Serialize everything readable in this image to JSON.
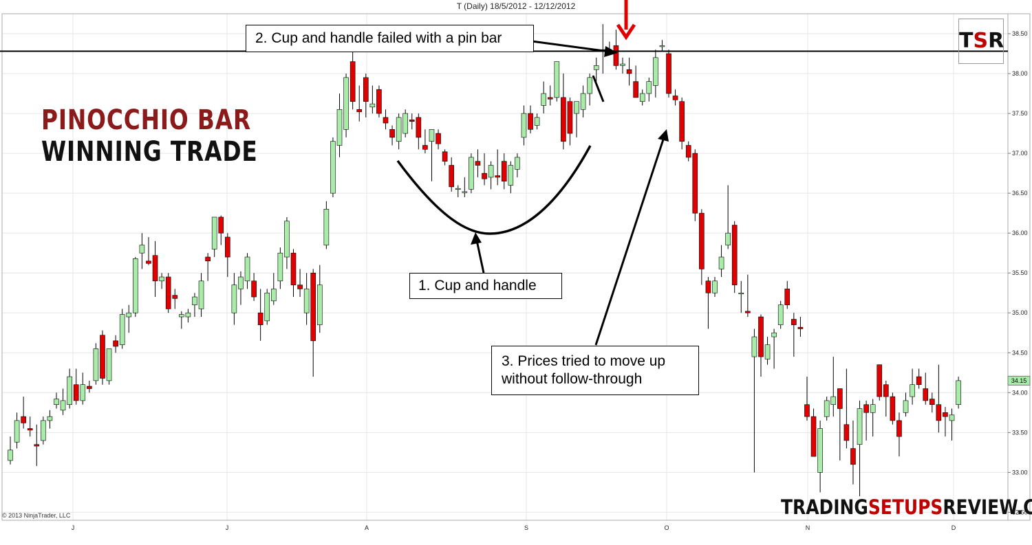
{
  "chart_data": {
    "type": "candlestick",
    "title": "T (Daily)  18/5/2012 - 12/12/2012",
    "ylim": [
      32.4,
      38.75
    ],
    "y_ticks": [
      "32.50",
      "33.00",
      "33.50",
      "34.00",
      "34.50",
      "35.00",
      "35.50",
      "36.00",
      "36.50",
      "37.00",
      "37.50",
      "38.00",
      "38.50"
    ],
    "x_ticks": [
      "J",
      "J",
      "A",
      "S",
      "O",
      "N",
      "D"
    ],
    "last_price": "34.15",
    "resistance_level": 38.28,
    "grid": true,
    "candles": [
      {
        "o": 33.15,
        "h": 33.45,
        "l": 33.1,
        "c": 33.28
      },
      {
        "o": 33.38,
        "h": 33.75,
        "l": 33.3,
        "c": 33.65
      },
      {
        "o": 33.7,
        "h": 33.95,
        "l": 33.55,
        "c": 33.62
      },
      {
        "o": 33.55,
        "h": 33.7,
        "l": 33.45,
        "c": 33.53
      },
      {
        "o": 33.35,
        "h": 33.6,
        "l": 33.08,
        "c": 33.33
      },
      {
        "o": 33.4,
        "h": 33.7,
        "l": 33.35,
        "c": 33.65
      },
      {
        "o": 33.65,
        "h": 33.78,
        "l": 33.55,
        "c": 33.7
      },
      {
        "o": 33.85,
        "h": 34.0,
        "l": 33.8,
        "c": 33.92
      },
      {
        "o": 33.78,
        "h": 34.05,
        "l": 33.72,
        "c": 33.9
      },
      {
        "o": 33.85,
        "h": 34.3,
        "l": 33.8,
        "c": 34.2
      },
      {
        "o": 34.1,
        "h": 34.3,
        "l": 33.85,
        "c": 33.9
      },
      {
        "o": 33.9,
        "h": 34.25,
        "l": 33.85,
        "c": 34.1
      },
      {
        "o": 34.08,
        "h": 34.15,
        "l": 34.0,
        "c": 34.05
      },
      {
        "o": 34.15,
        "h": 34.62,
        "l": 34.1,
        "c": 34.55
      },
      {
        "o": 34.72,
        "h": 34.78,
        "l": 34.1,
        "c": 34.18
      },
      {
        "o": 34.15,
        "h": 34.55,
        "l": 34.1,
        "c": 34.55
      },
      {
        "o": 34.65,
        "h": 34.72,
        "l": 34.5,
        "c": 34.58
      },
      {
        "o": 34.6,
        "h": 35.05,
        "l": 34.55,
        "c": 34.98
      },
      {
        "o": 34.95,
        "h": 35.1,
        "l": 34.75,
        "c": 35.0
      },
      {
        "o": 35.0,
        "h": 35.7,
        "l": 34.95,
        "c": 35.68
      },
      {
        "o": 35.75,
        "h": 36.0,
        "l": 35.55,
        "c": 35.85
      },
      {
        "o": 35.65,
        "h": 35.95,
        "l": 35.6,
        "c": 35.62
      },
      {
        "o": 35.72,
        "h": 35.9,
        "l": 35.2,
        "c": 35.4
      },
      {
        "o": 35.4,
        "h": 35.5,
        "l": 35.3,
        "c": 35.45
      },
      {
        "o": 35.45,
        "h": 35.5,
        "l": 35.0,
        "c": 35.05
      },
      {
        "o": 35.22,
        "h": 35.3,
        "l": 35.05,
        "c": 35.18
      },
      {
        "o": 34.95,
        "h": 35.02,
        "l": 34.8,
        "c": 34.98
      },
      {
        "o": 34.95,
        "h": 35.05,
        "l": 34.88,
        "c": 35.0
      },
      {
        "o": 35.1,
        "h": 35.25,
        "l": 34.95,
        "c": 35.2
      },
      {
        "o": 35.05,
        "h": 35.5,
        "l": 34.95,
        "c": 35.4
      },
      {
        "o": 35.7,
        "h": 35.75,
        "l": 35.4,
        "c": 35.65
      },
      {
        "o": 35.8,
        "h": 36.2,
        "l": 35.7,
        "c": 36.2
      },
      {
        "o": 36.2,
        "h": 36.22,
        "l": 35.85,
        "c": 36.0
      },
      {
        "o": 35.95,
        "h": 36.0,
        "l": 35.45,
        "c": 35.7
      },
      {
        "o": 35.0,
        "h": 35.5,
        "l": 34.85,
        "c": 35.35
      },
      {
        "o": 35.3,
        "h": 35.52,
        "l": 35.1,
        "c": 35.45
      },
      {
        "o": 35.4,
        "h": 35.75,
        "l": 35.3,
        "c": 35.7
      },
      {
        "o": 35.4,
        "h": 35.5,
        "l": 35.15,
        "c": 35.2
      },
      {
        "o": 35.0,
        "h": 35.3,
        "l": 34.65,
        "c": 34.85
      },
      {
        "o": 34.9,
        "h": 35.3,
        "l": 34.85,
        "c": 35.25
      },
      {
        "o": 35.15,
        "h": 35.5,
        "l": 35.1,
        "c": 35.3
      },
      {
        "o": 35.4,
        "h": 35.82,
        "l": 35.3,
        "c": 35.75
      },
      {
        "o": 35.7,
        "h": 36.2,
        "l": 35.55,
        "c": 36.15
      },
      {
        "o": 35.75,
        "h": 35.8,
        "l": 35.2,
        "c": 35.35
      },
      {
        "o": 35.35,
        "h": 35.55,
        "l": 35.2,
        "c": 35.3
      },
      {
        "o": 35.0,
        "h": 35.5,
        "l": 34.85,
        "c": 35.3
      },
      {
        "o": 35.5,
        "h": 35.55,
        "l": 34.2,
        "c": 34.65
      },
      {
        "o": 34.85,
        "h": 35.6,
        "l": 34.75,
        "c": 35.35
      },
      {
        "o": 35.85,
        "h": 36.4,
        "l": 35.8,
        "c": 36.3
      },
      {
        "o": 36.5,
        "h": 37.2,
        "l": 36.45,
        "c": 37.15
      },
      {
        "o": 37.1,
        "h": 37.75,
        "l": 36.95,
        "c": 37.55
      },
      {
        "o": 37.3,
        "h": 38.0,
        "l": 37.2,
        "c": 37.95
      },
      {
        "o": 38.15,
        "h": 38.28,
        "l": 37.55,
        "c": 37.65
      },
      {
        "o": 37.55,
        "h": 37.85,
        "l": 37.4,
        "c": 37.52
      },
      {
        "o": 37.95,
        "h": 38.0,
        "l": 37.45,
        "c": 37.65
      },
      {
        "o": 37.58,
        "h": 37.85,
        "l": 37.5,
        "c": 37.62
      },
      {
        "o": 37.8,
        "h": 37.85,
        "l": 37.45,
        "c": 37.5
      },
      {
        "o": 37.45,
        "h": 37.55,
        "l": 37.3,
        "c": 37.38
      },
      {
        "o": 37.3,
        "h": 37.35,
        "l": 37.1,
        "c": 37.2
      },
      {
        "o": 37.15,
        "h": 37.5,
        "l": 37.05,
        "c": 37.45
      },
      {
        "o": 37.25,
        "h": 37.55,
        "l": 37.2,
        "c": 37.5
      },
      {
        "o": 37.42,
        "h": 37.5,
        "l": 37.3,
        "c": 37.4
      },
      {
        "o": 37.45,
        "h": 37.5,
        "l": 37.05,
        "c": 37.2
      },
      {
        "o": 37.1,
        "h": 37.3,
        "l": 37.0,
        "c": 37.05
      },
      {
        "o": 37.15,
        "h": 37.3,
        "l": 36.65,
        "c": 37.3
      },
      {
        "o": 37.25,
        "h": 37.3,
        "l": 37.05,
        "c": 37.12
      },
      {
        "o": 37.02,
        "h": 37.05,
        "l": 36.85,
        "c": 36.9
      },
      {
        "o": 36.85,
        "h": 36.95,
        "l": 36.52,
        "c": 36.58
      },
      {
        "o": 36.55,
        "h": 36.6,
        "l": 36.45,
        "c": 36.56
      },
      {
        "o": 36.52,
        "h": 36.7,
        "l": 36.45,
        "c": 36.52
      },
      {
        "o": 36.55,
        "h": 37.0,
        "l": 36.5,
        "c": 36.95
      },
      {
        "o": 36.9,
        "h": 37.05,
        "l": 36.7,
        "c": 36.85
      },
      {
        "o": 36.75,
        "h": 37.0,
        "l": 36.6,
        "c": 36.68
      },
      {
        "o": 36.7,
        "h": 36.9,
        "l": 36.55,
        "c": 36.85
      },
      {
        "o": 36.72,
        "h": 37.05,
        "l": 36.6,
        "c": 36.7
      },
      {
        "o": 36.9,
        "h": 37.0,
        "l": 36.55,
        "c": 36.65
      },
      {
        "o": 36.6,
        "h": 36.9,
        "l": 36.5,
        "c": 36.85
      },
      {
        "o": 36.8,
        "h": 37.0,
        "l": 36.7,
        "c": 36.95
      },
      {
        "o": 37.2,
        "h": 37.6,
        "l": 37.1,
        "c": 37.5
      },
      {
        "o": 37.5,
        "h": 37.6,
        "l": 37.25,
        "c": 37.3
      },
      {
        "o": 37.35,
        "h": 37.5,
        "l": 37.3,
        "c": 37.45
      },
      {
        "o": 37.6,
        "h": 37.9,
        "l": 37.5,
        "c": 37.75
      },
      {
        "o": 37.7,
        "h": 37.85,
        "l": 37.6,
        "c": 37.68
      },
      {
        "o": 37.7,
        "h": 38.15,
        "l": 37.65,
        "c": 38.15
      },
      {
        "o": 37.7,
        "h": 38.0,
        "l": 37.05,
        "c": 37.15
      },
      {
        "o": 37.65,
        "h": 37.7,
        "l": 37.1,
        "c": 37.25
      },
      {
        "o": 37.5,
        "h": 37.65,
        "l": 37.2,
        "c": 37.65
      },
      {
        "o": 37.55,
        "h": 37.85,
        "l": 37.45,
        "c": 37.75
      },
      {
        "o": 37.75,
        "h": 38.0,
        "l": 37.6,
        "c": 37.95
      },
      {
        "o": 38.05,
        "h": 38.2,
        "l": 37.9,
        "c": 38.1
      },
      {
        "o": 38.3,
        "h": 38.62,
        "l": 38.0,
        "c": 38.28
      },
      {
        "o": 38.3,
        "h": 38.4,
        "l": 38.25,
        "c": 38.26
      },
      {
        "o": 38.35,
        "h": 38.55,
        "l": 38.05,
        "c": 38.1
      },
      {
        "o": 38.1,
        "h": 38.2,
        "l": 38.0,
        "c": 38.12
      },
      {
        "o": 38.05,
        "h": 38.2,
        "l": 37.85,
        "c": 38.0
      },
      {
        "o": 37.9,
        "h": 38.1,
        "l": 37.75,
        "c": 37.7
      },
      {
        "o": 37.65,
        "h": 37.8,
        "l": 37.6,
        "c": 37.75
      },
      {
        "o": 37.75,
        "h": 37.95,
        "l": 37.65,
        "c": 37.9
      },
      {
        "o": 37.85,
        "h": 38.3,
        "l": 37.7,
        "c": 38.2
      },
      {
        "o": 38.35,
        "h": 38.42,
        "l": 38.28,
        "c": 38.35
      },
      {
        "o": 38.25,
        "h": 38.3,
        "l": 37.7,
        "c": 37.75
      },
      {
        "o": 37.72,
        "h": 37.8,
        "l": 37.6,
        "c": 37.67
      },
      {
        "o": 37.65,
        "h": 37.7,
        "l": 37.05,
        "c": 37.15
      },
      {
        "o": 37.1,
        "h": 37.15,
        "l": 36.9,
        "c": 36.95
      },
      {
        "o": 37.0,
        "h": 37.05,
        "l": 36.15,
        "c": 36.25
      },
      {
        "o": 36.25,
        "h": 36.3,
        "l": 35.35,
        "c": 35.55
      },
      {
        "o": 35.4,
        "h": 35.45,
        "l": 34.8,
        "c": 35.25
      },
      {
        "o": 35.25,
        "h": 35.45,
        "l": 35.2,
        "c": 35.4
      },
      {
        "o": 35.55,
        "h": 35.85,
        "l": 35.45,
        "c": 35.7
      },
      {
        "o": 35.85,
        "h": 36.6,
        "l": 35.8,
        "c": 36.0
      },
      {
        "o": 36.1,
        "h": 36.15,
        "l": 35.25,
        "c": 35.35
      },
      {
        "o": 35.25,
        "h": 35.4,
        "l": 35.0,
        "c": 35.25
      },
      {
        "o": 35.02,
        "h": 35.48,
        "l": 34.95,
        "c": 35.0
      },
      {
        "o": 34.45,
        "h": 34.8,
        "l": 33.0,
        "c": 34.7
      },
      {
        "o": 34.95,
        "h": 34.98,
        "l": 34.2,
        "c": 34.45
      },
      {
        "o": 34.42,
        "h": 34.7,
        "l": 34.35,
        "c": 34.6
      },
      {
        "o": 34.7,
        "h": 34.8,
        "l": 34.3,
        "c": 34.75
      },
      {
        "o": 34.85,
        "h": 35.15,
        "l": 34.8,
        "c": 35.1
      },
      {
        "o": 35.3,
        "h": 35.4,
        "l": 35.05,
        "c": 35.1
      },
      {
        "o": 34.92,
        "h": 35.0,
        "l": 34.45,
        "c": 34.85
      },
      {
        "o": 34.82,
        "h": 34.95,
        "l": 34.7,
        "c": 34.8
      },
      {
        "o": 33.85,
        "h": 34.2,
        "l": 33.65,
        "c": 33.7
      },
      {
        "o": 33.7,
        "h": 33.8,
        "l": 33.2,
        "c": 33.2
      },
      {
        "o": 33.0,
        "h": 33.65,
        "l": 32.75,
        "c": 33.55
      },
      {
        "o": 33.7,
        "h": 33.95,
        "l": 33.65,
        "c": 33.9
      },
      {
        "o": 33.85,
        "h": 34.45,
        "l": 33.7,
        "c": 33.95
      },
      {
        "o": 34.05,
        "h": 34.05,
        "l": 33.15,
        "c": 33.8
      },
      {
        "o": 33.6,
        "h": 34.3,
        "l": 33.3,
        "c": 33.4
      },
      {
        "o": 33.3,
        "h": 33.65,
        "l": 32.85,
        "c": 33.1
      },
      {
        "o": 33.35,
        "h": 33.9,
        "l": 32.7,
        "c": 33.8
      },
      {
        "o": 33.85,
        "h": 33.9,
        "l": 33.4,
        "c": 33.75
      },
      {
        "o": 33.75,
        "h": 33.92,
        "l": 33.45,
        "c": 33.85
      },
      {
        "o": 34.35,
        "h": 34.35,
        "l": 33.9,
        "c": 33.95
      },
      {
        "o": 34.1,
        "h": 34.15,
        "l": 33.7,
        "c": 33.95
      },
      {
        "o": 33.95,
        "h": 34.0,
        "l": 33.6,
        "c": 33.65
      },
      {
        "o": 33.65,
        "h": 33.75,
        "l": 33.2,
        "c": 33.45
      },
      {
        "o": 33.75,
        "h": 34.0,
        "l": 33.7,
        "c": 33.9
      },
      {
        "o": 33.95,
        "h": 34.3,
        "l": 33.85,
        "c": 34.1
      },
      {
        "o": 34.2,
        "h": 34.3,
        "l": 34.05,
        "c": 34.1
      },
      {
        "o": 34.05,
        "h": 34.25,
        "l": 33.85,
        "c": 33.9
      },
      {
        "o": 33.92,
        "h": 34.0,
        "l": 33.75,
        "c": 33.85
      },
      {
        "o": 33.85,
        "h": 34.35,
        "l": 33.5,
        "c": 33.65
      },
      {
        "o": 33.75,
        "h": 33.82,
        "l": 33.45,
        "c": 33.7
      },
      {
        "o": 33.65,
        "h": 33.8,
        "l": 33.4,
        "c": 33.72
      },
      {
        "o": 33.85,
        "h": 34.2,
        "l": 33.8,
        "c": 34.15
      }
    ]
  },
  "brand": {
    "line1": "PINOCCHIO BAR",
    "line2": "WINNING TRADE",
    "line1_color": "#8b1a1a",
    "line2_color": "#111111",
    "logo": "TSR",
    "site": "TRADINGSETUPSREVIEW.COM",
    "site_highlight_color": "#c00000"
  },
  "annotations": {
    "label1": "1. Cup and handle",
    "label2": "2. Cup and handle failed with a pin bar",
    "label3_line1": "3. Prices tried to move up",
    "label3_line2": "without  follow-through"
  },
  "copyright": "© 2013 NinjaTrader, LLC",
  "colors": {
    "up_candle": "#a9eca9",
    "down_candle": "#e00000",
    "arrow_red": "#e00000",
    "line": "#000000",
    "grid": "#e6e6e6"
  }
}
